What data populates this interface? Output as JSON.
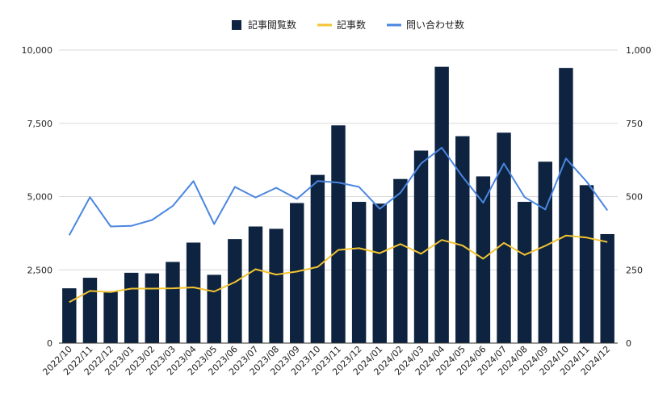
{
  "chart_data": {
    "type": "bar",
    "categories": [
      "2022/10",
      "2022/11",
      "2022/12",
      "2023/01",
      "2023/02",
      "2023/03",
      "2023/04",
      "2023/05",
      "2023/06",
      "2023/07",
      "2023/08",
      "2023/09",
      "2023/10",
      "2023/11",
      "2023/12",
      "2024/01",
      "2024/02",
      "2024/03",
      "2024/04",
      "2024/05",
      "2024/06",
      "2024/07",
      "2024/08",
      "2024/09",
      "2024/10",
      "2024/11",
      "2024/12"
    ],
    "series": [
      {
        "name": "記事閲覧数",
        "kind": "bar",
        "axis": "left",
        "color": "#0d2340",
        "values": [
          1870,
          2230,
          1770,
          2400,
          2380,
          2770,
          3430,
          2330,
          3550,
          3980,
          3900,
          4780,
          5740,
          7430,
          4820,
          4760,
          5600,
          6570,
          9430,
          7060,
          5690,
          7180,
          4820,
          6190,
          9390,
          5390,
          3720
        ]
      },
      {
        "name": "記事数",
        "kind": "line",
        "axis": "right",
        "color": "#f3c431",
        "values": [
          140,
          178,
          174,
          186,
          186,
          187,
          190,
          176,
          208,
          252,
          234,
          244,
          260,
          318,
          324,
          307,
          338,
          305,
          352,
          333,
          288,
          342,
          301,
          332,
          367,
          360,
          345
        ]
      },
      {
        "name": "問い合わせ数",
        "kind": "line",
        "axis": "right",
        "color": "#4a86e0",
        "values": [
          368,
          498,
          398,
          400,
          420,
          468,
          553,
          406,
          533,
          497,
          530,
          492,
          553,
          548,
          533,
          458,
          513,
          613,
          667,
          568,
          479,
          613,
          498,
          456,
          630,
          551,
          453
        ]
      }
    ],
    "y_left": {
      "ylim": [
        0,
        10000
      ],
      "ticks": [
        "0",
        "2,500",
        "5,000",
        "7,500",
        "10,000"
      ],
      "tick_values": [
        0,
        2500,
        5000,
        7500,
        10000
      ]
    },
    "y_right": {
      "ylim": [
        0,
        1000
      ],
      "ticks": [
        "0",
        "250",
        "500",
        "750",
        "1,000"
      ],
      "tick_values": [
        0,
        250,
        500,
        750,
        1000
      ]
    },
    "legend_position": "top-center",
    "grid": true
  }
}
